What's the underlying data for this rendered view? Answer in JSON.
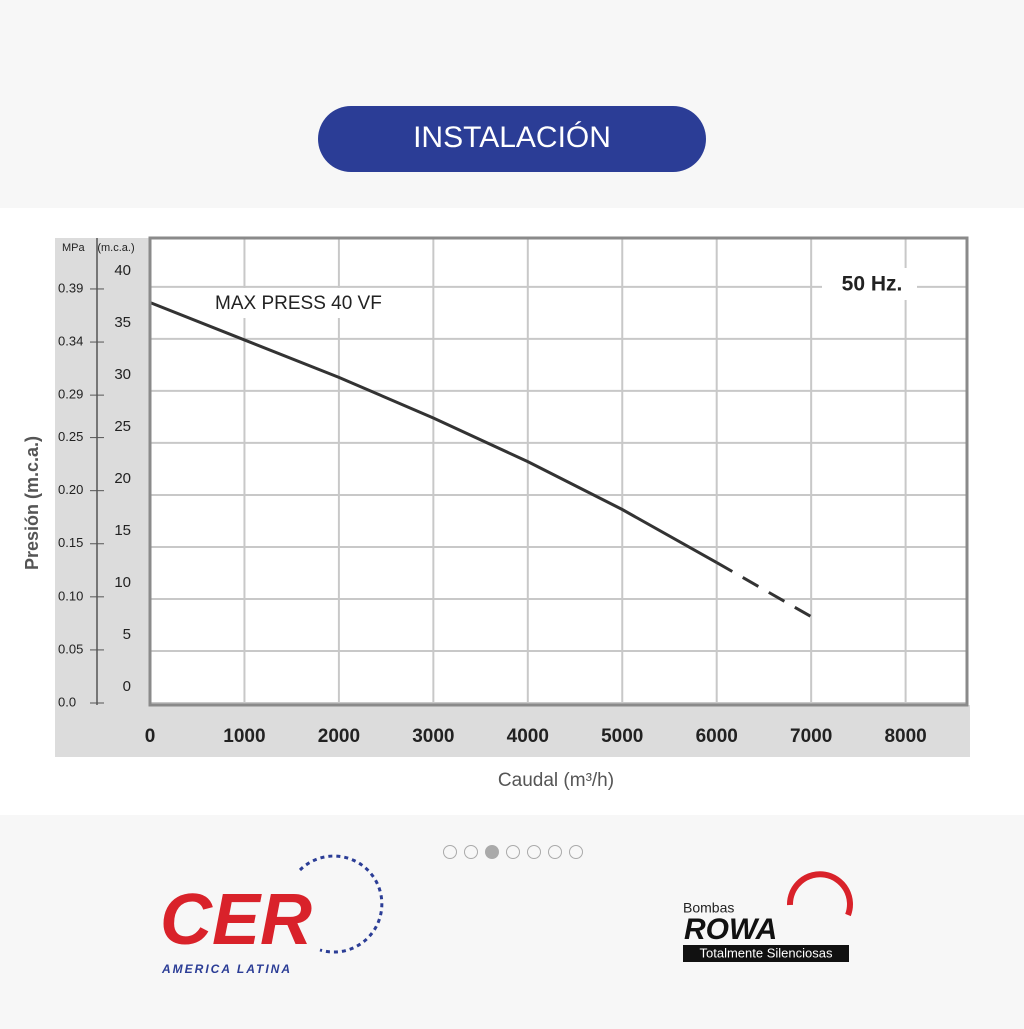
{
  "header": {
    "button": "INSTALACIÓN"
  },
  "chart_data": {
    "type": "line",
    "axis_label_mpa": "MPa",
    "axis_label_mca": "(m.c.a.)",
    "y_label": "Presión (m.c.a.)",
    "x_label": "Caudal (m³/h)",
    "annotations": [
      "MAX PRESS 40 VF",
      "50 Hz."
    ],
    "x": [
      0,
      1000,
      2000,
      3000,
      4000,
      5000,
      6000,
      7000
    ],
    "series": [
      {
        "color": "#333333",
        "dash": false,
        "values": [
          38.5,
          34.9,
          31.3,
          27.4,
          23.2,
          18.6,
          13.5,
          null
        ]
      },
      {
        "color": "#333333",
        "dash": true,
        "values": [
          null,
          null,
          null,
          null,
          null,
          null,
          13.5,
          8.3
        ]
      }
    ],
    "xlim": [
      0,
      8650
    ],
    "xticks": [
      0,
      1000,
      2000,
      3000,
      4000,
      5000,
      6000,
      7000,
      8000
    ],
    "ylim": [
      0,
      44.7
    ],
    "yticks": [
      0,
      5,
      10,
      15,
      20,
      25,
      30,
      35,
      40
    ],
    "y2lim": [
      0,
      0.438
    ],
    "y2ticks": [
      {
        "value": 0,
        "label": "0.0"
      },
      0.05,
      {
        "value": 0.1,
        "label": "0.10"
      },
      0.15,
      {
        "value": 0.2,
        "label": "0.20"
      },
      0.25,
      0.29,
      0.34,
      0.39
    ],
    "grid": true
  },
  "footer": {
    "logo_left": "CER",
    "logo_left_sub": "AMERICA LATINA",
    "logo_right_top": "Bombas",
    "logo_right": "ROWA",
    "logo_right_sub": "Totalmente Silenciosas"
  }
}
